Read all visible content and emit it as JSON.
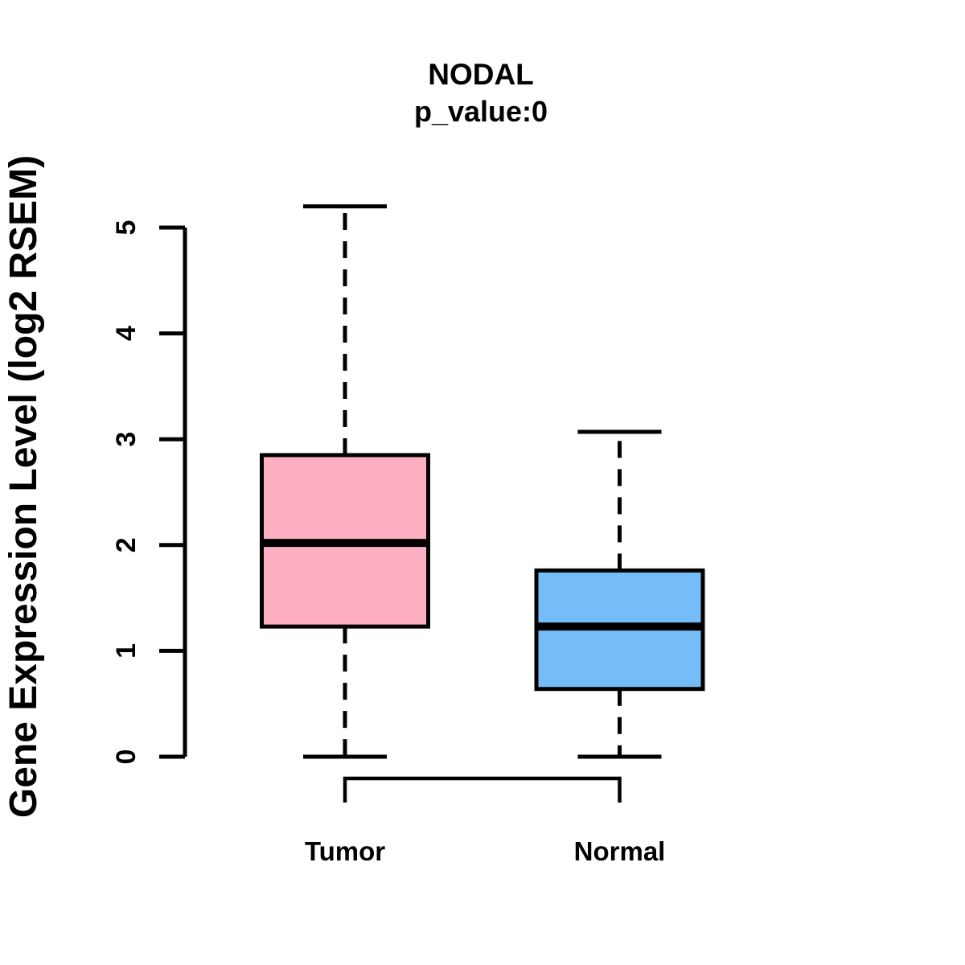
{
  "chart_data": {
    "type": "boxplot",
    "title": "NODAL",
    "subtitle": "p_value:0",
    "ylabel": "Gene Expression Level (log2 RSEM)",
    "xlabel": "",
    "ylim": [
      0,
      5.2
    ],
    "yticks": [
      0,
      1,
      2,
      3,
      4,
      5
    ],
    "grid": false,
    "legend": "none",
    "categories": [
      "Tumor",
      "Normal"
    ],
    "series": [
      {
        "name": "Tumor",
        "color": "#FFAFC2",
        "whisker_low": 0,
        "q1": 1.23,
        "median": 2.02,
        "q3": 2.85,
        "whisker_high": 5.2,
        "outliers": []
      },
      {
        "name": "Normal",
        "color": "#74BDF7",
        "whisker_low": 0,
        "q1": 0.64,
        "median": 1.23,
        "q3": 1.76,
        "whisker_high": 3.07,
        "outliers": []
      }
    ],
    "annotations": {
      "comparison_bracket": {
        "from": "Tumor",
        "to": "Normal"
      }
    },
    "stroke_color": "#000000"
  }
}
